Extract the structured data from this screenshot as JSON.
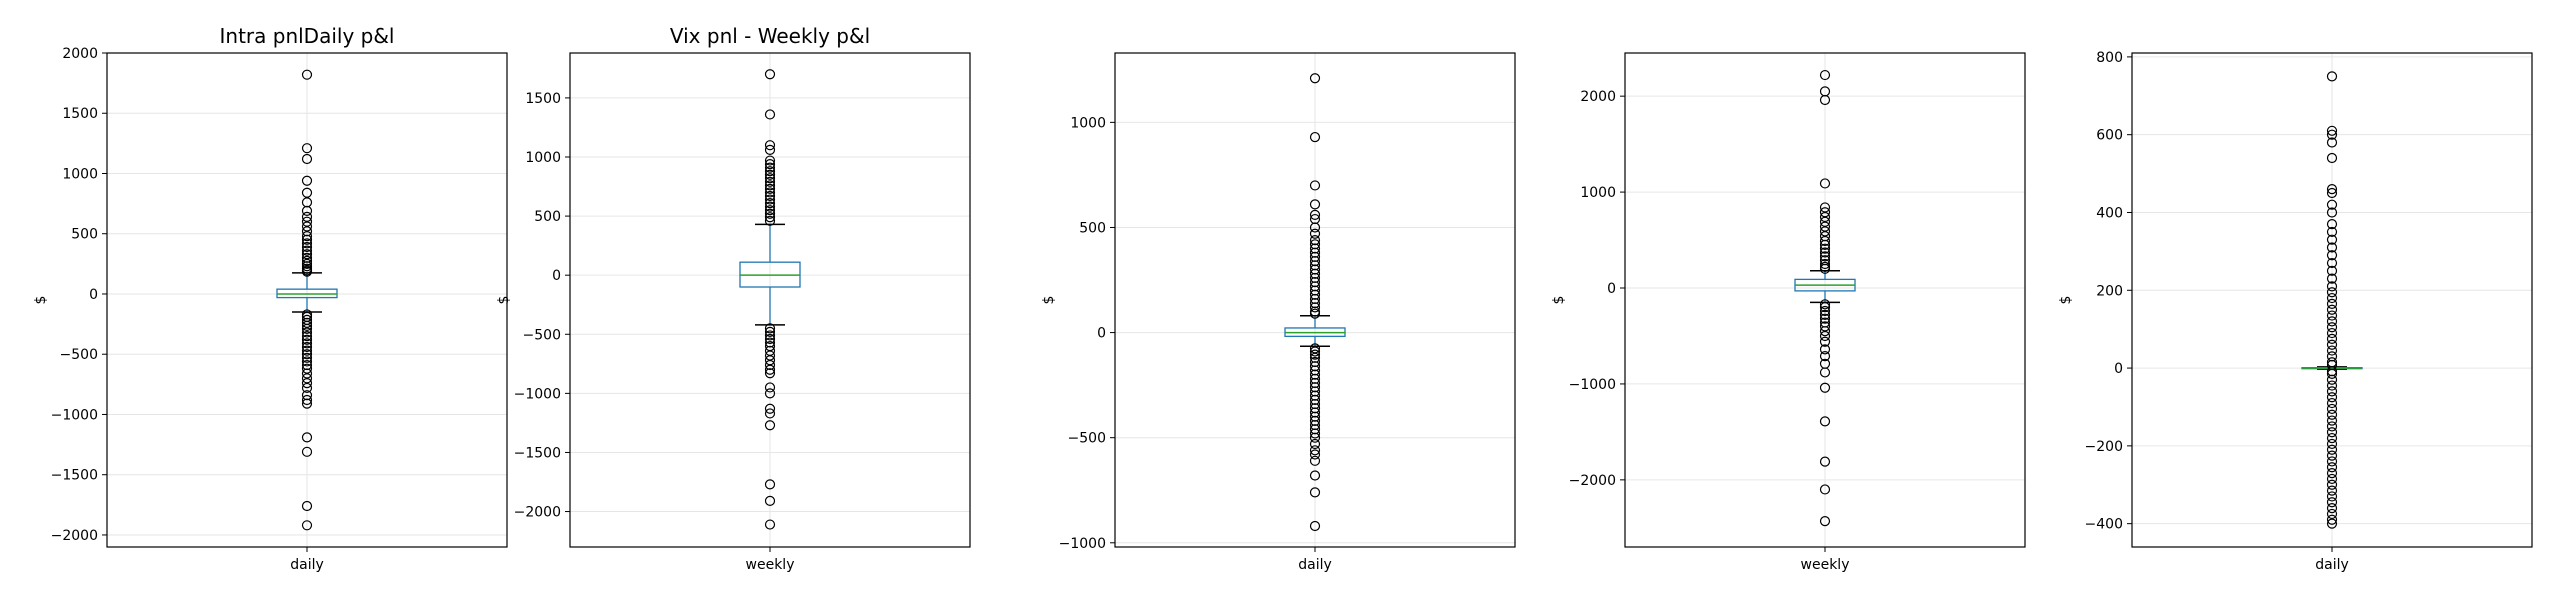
{
  "chart_data": [
    {
      "type": "box",
      "title": "Intra pnlDaily p&l",
      "xlabel": "daily",
      "ylabel": "$",
      "ylim": [
        -2100,
        2000
      ],
      "yticks": [
        -2000,
        -1500,
        -1000,
        -500,
        0,
        500,
        1000,
        1500,
        2000
      ],
      "grid": true,
      "box": {
        "q1": -30,
        "median": 0,
        "q3": 40,
        "whisker_low": -150,
        "whisker_high": 175
      },
      "outliers": [
        1820,
        1210,
        1120,
        940,
        840,
        760,
        690,
        640,
        600,
        560,
        520,
        480,
        450,
        420,
        390,
        360,
        330,
        300,
        275,
        250,
        230,
        210,
        195,
        185,
        -170,
        -190,
        -215,
        -240,
        -265,
        -290,
        -320,
        -350,
        -380,
        -410,
        -440,
        -470,
        -500,
        -530,
        -560,
        -590,
        -620,
        -660,
        -700,
        -740,
        -780,
        -840,
        -880,
        -910,
        -1190,
        -1310,
        -1760,
        -1920
      ]
    },
    {
      "type": "box",
      "title": "Vix pnl - Weekly p&l",
      "xlabel": "weekly",
      "ylabel": "$",
      "ylim": [
        -2300,
        1880
      ],
      "yticks": [
        -2000,
        -1500,
        -1000,
        -500,
        0,
        500,
        1000,
        1500
      ],
      "grid": true,
      "box": {
        "q1": -100,
        "median": 0,
        "q3": 110,
        "whisker_low": -420,
        "whisker_high": 430
      },
      "outliers": [
        1700,
        1360,
        1100,
        1060,
        970,
        940,
        910,
        880,
        850,
        820,
        790,
        760,
        730,
        700,
        670,
        640,
        610,
        580,
        550,
        520,
        490,
        460,
        -450,
        -480,
        -510,
        -540,
        -570,
        -600,
        -640,
        -680,
        -720,
        -760,
        -800,
        -830,
        -950,
        -1000,
        -1130,
        -1170,
        -1270,
        -1770,
        -1910,
        -2110
      ]
    },
    {
      "type": "box",
      "title": "",
      "xlabel": "daily",
      "ylabel": "$",
      "ylim": [
        -1020,
        1330
      ],
      "yticks": [
        -1000,
        -500,
        0,
        500,
        1000
      ],
      "grid": true,
      "box": {
        "q1": -18,
        "median": 0,
        "q3": 22,
        "whisker_low": -65,
        "whisker_high": 80
      },
      "outliers": [
        1210,
        930,
        700,
        610,
        560,
        540,
        500,
        470,
        440,
        420,
        400,
        380,
        360,
        340,
        320,
        300,
        280,
        260,
        240,
        220,
        200,
        180,
        160,
        140,
        120,
        100,
        90,
        -75,
        -90,
        -105,
        -120,
        -140,
        -160,
        -180,
        -200,
        -220,
        -240,
        -260,
        -280,
        -300,
        -320,
        -340,
        -360,
        -380,
        -400,
        -420,
        -440,
        -460,
        -480,
        -500,
        -530,
        -560,
        -580,
        -610,
        -680,
        -760,
        -920
      ]
    },
    {
      "type": "box",
      "title": "",
      "xlabel": "weekly",
      "ylabel": "$",
      "ylim": [
        -2700,
        2450
      ],
      "yticks": [
        -2000,
        -1000,
        0,
        1000,
        2000
      ],
      "grid": true,
      "box": {
        "q1": -30,
        "median": 30,
        "q3": 90,
        "whisker_low": -150,
        "whisker_high": 180
      },
      "outliers": [
        2220,
        2050,
        1960,
        1090,
        840,
        790,
        740,
        690,
        640,
        590,
        540,
        490,
        450,
        410,
        370,
        330,
        290,
        250,
        220,
        200,
        -170,
        -200,
        -240,
        -280,
        -320,
        -360,
        -400,
        -450,
        -500,
        -560,
        -640,
        -710,
        -790,
        -880,
        -1040,
        -1390,
        -1810,
        -2100,
        -2430
      ]
    },
    {
      "type": "box",
      "title": "",
      "xlabel": "daily",
      "ylabel": "$",
      "ylim": [
        -460,
        810
      ],
      "yticks": [
        -400,
        -200,
        0,
        200,
        400,
        600,
        800
      ],
      "grid": true,
      "box": {
        "q1": -1,
        "median": 0,
        "q3": 1,
        "whisker_low": -3,
        "whisker_high": 3
      },
      "outliers": [
        750,
        610,
        600,
        580,
        540,
        460,
        450,
        420,
        400,
        370,
        350,
        330,
        310,
        290,
        270,
        250,
        230,
        210,
        195,
        180,
        165,
        150,
        135,
        120,
        105,
        90,
        75,
        60,
        45,
        30,
        15,
        8,
        -8,
        -15,
        -30,
        -45,
        -60,
        -75,
        -90,
        -105,
        -120,
        -135,
        -150,
        -165,
        -180,
        -195,
        -210,
        -225,
        -240,
        -255,
        -270,
        -285,
        -300,
        -315,
        -330,
        -345,
        -360,
        -375,
        -390,
        -400
      ]
    }
  ],
  "colors": {
    "box": "#1f77b4",
    "median": "#2ca02c",
    "whisker": "#000000",
    "outlier": "#000000",
    "grid": "#e6e6e6",
    "axes": "#000000"
  }
}
